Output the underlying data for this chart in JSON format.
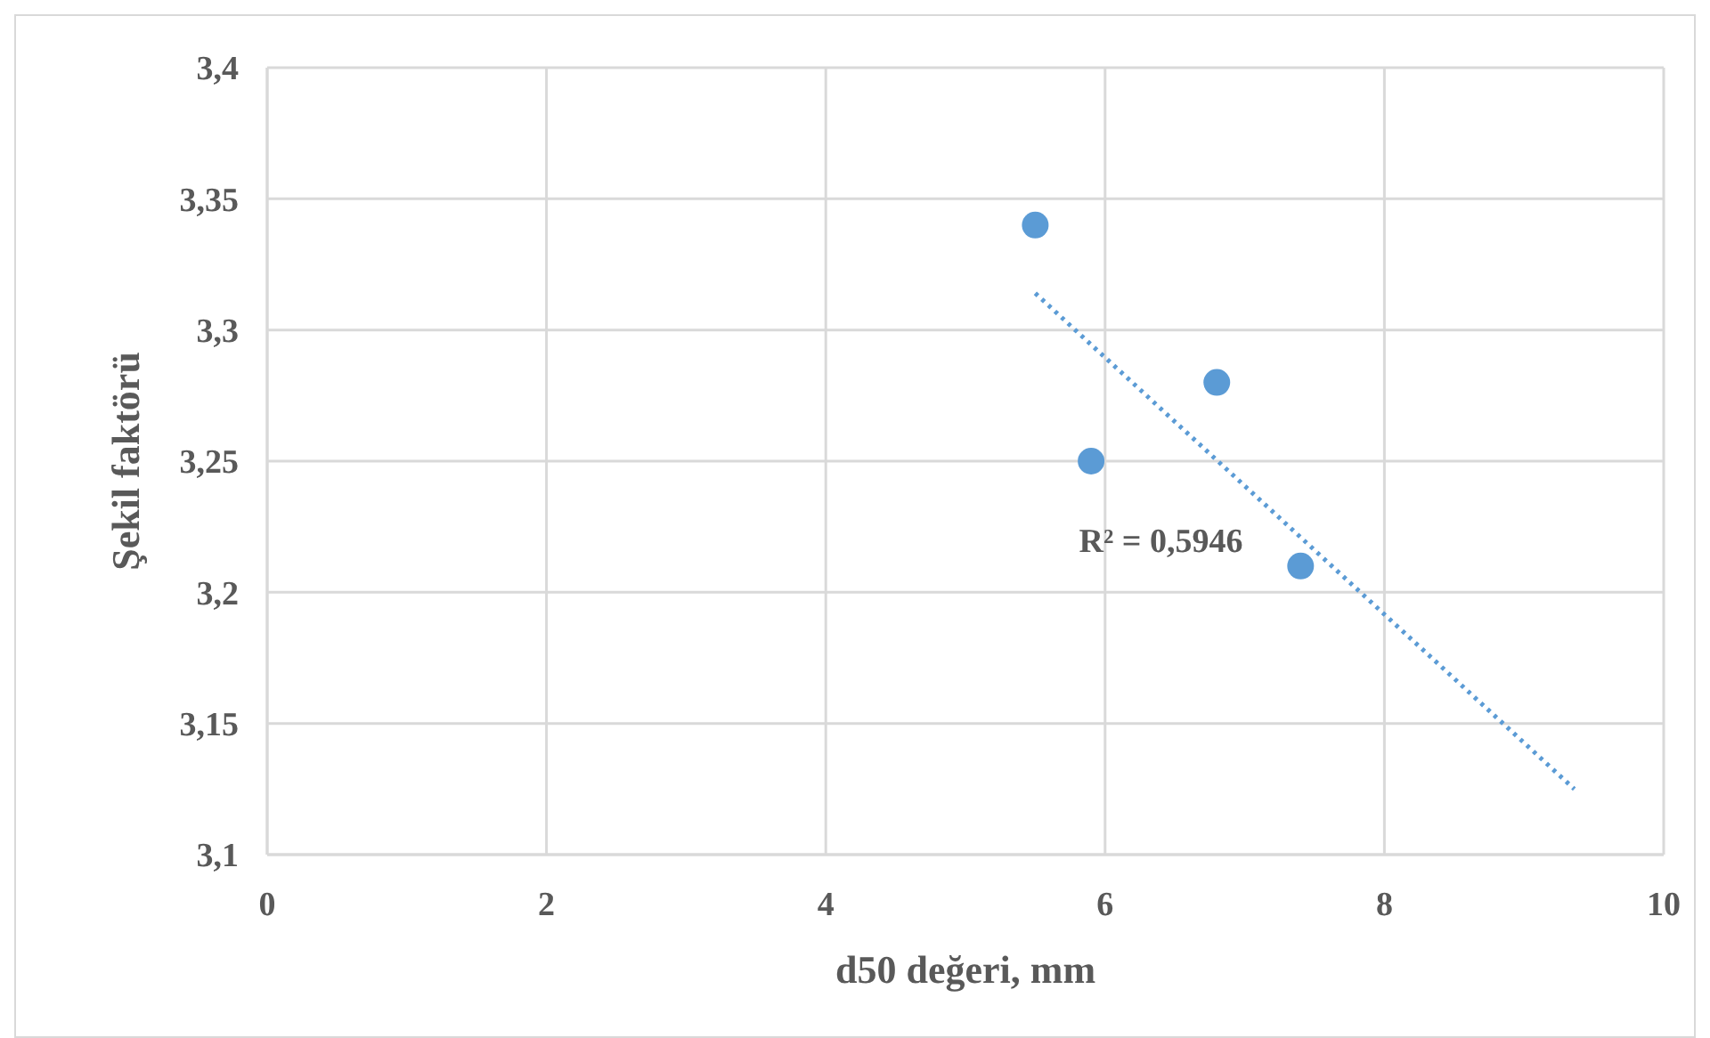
{
  "chart_data": {
    "type": "scatter",
    "xlabel": "d50 değeri, mm",
    "ylabel": "Şekil faktörü",
    "xlim": [
      0,
      10
    ],
    "xticks": [
      0,
      2,
      4,
      6,
      8,
      10
    ],
    "ylim": [
      3.1,
      3.4
    ],
    "yticks": [
      {
        "value": 3.1,
        "label": "3,1"
      },
      {
        "value": 3.15,
        "label": "3,15"
      },
      {
        "value": 3.2,
        "label": "3,2"
      },
      {
        "value": 3.25,
        "label": "3,25"
      },
      {
        "value": 3.3,
        "label": "3,3"
      },
      {
        "value": 3.35,
        "label": "3,35"
      },
      {
        "value": 3.4,
        "label": "3,4"
      }
    ],
    "grid": true,
    "series": [
      {
        "color": "#5b9bd5",
        "marker": "circle",
        "x": [
          5.5,
          5.9,
          6.8,
          7.4
        ],
        "values": [
          3.34,
          3.25,
          3.28,
          3.21
        ]
      },
      {
        "type": "line",
        "color": "#5b9bd5",
        "line_style": "dotted",
        "marker": "none",
        "x": [
          5.5,
          9.36
        ],
        "values": [
          3.314,
          3.125
        ]
      }
    ],
    "annotations": [
      "R² = 0,5946"
    ]
  }
}
